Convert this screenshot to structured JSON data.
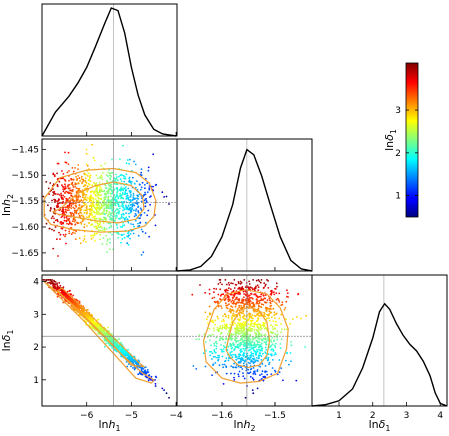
{
  "chart_data": {
    "type": "corner-plot",
    "parameters": [
      {
        "key": "lnh1",
        "label": "ln h1",
        "base": "ln",
        "symbol": "h",
        "sub": "1",
        "range": [
          -7.0,
          -3.98
        ],
        "ticks": [
          -6,
          -5,
          -4
        ],
        "tick_labels": [
          "−6",
          "−5",
          "−4"
        ],
        "marker": -5.4
      },
      {
        "key": "lnh2",
        "label": "ln h2",
        "base": "ln",
        "symbol": "h",
        "sub": "2",
        "range": [
          -1.685,
          -1.43
        ],
        "ticks": [
          -1.6,
          -1.5
        ],
        "tick_labels": [
          "−1.6",
          "−1.5"
        ],
        "ticks_y": [
          -1.65,
          -1.6,
          -1.55,
          -1.5,
          -1.45
        ],
        "tick_labels_y": [
          "−1.65",
          "−1.60",
          "−1.55",
          "−1.50",
          "−1.45"
        ],
        "marker": -1.553
      },
      {
        "key": "lndelta1",
        "label": "ln δ1",
        "base": "ln",
        "symbol": "δ",
        "sub": "1",
        "range": [
          0.2,
          4.2
        ],
        "ticks": [
          1,
          2,
          3,
          4
        ],
        "tick_labels": [
          "1",
          "2",
          "3",
          "4"
        ],
        "marker": 2.33
      }
    ],
    "marginals": [
      {
        "param": "lnh1",
        "type": "line",
        "x": [
          -7.0,
          -6.7,
          -6.4,
          -6.2,
          -6.0,
          -5.8,
          -5.6,
          -5.45,
          -5.3,
          -5.15,
          -5.0,
          -4.85,
          -4.7,
          -4.5,
          -4.3,
          -4.0
        ],
        "y": [
          0.0,
          0.18,
          0.3,
          0.4,
          0.52,
          0.68,
          0.85,
          0.97,
          0.95,
          0.78,
          0.52,
          0.31,
          0.16,
          0.05,
          0.015,
          0.0
        ]
      },
      {
        "param": "lnh2",
        "type": "line",
        "x": [
          -1.685,
          -1.66,
          -1.64,
          -1.62,
          -1.6,
          -1.58,
          -1.565,
          -1.553,
          -1.54,
          -1.525,
          -1.51,
          -1.49,
          -1.47,
          -1.45,
          -1.43
        ],
        "y": [
          0.0,
          0.008,
          0.035,
          0.11,
          0.26,
          0.5,
          0.78,
          0.92,
          0.88,
          0.72,
          0.52,
          0.26,
          0.08,
          0.015,
          0.0
        ]
      },
      {
        "param": "lndelta1",
        "type": "line",
        "x": [
          0.2,
          0.6,
          1.0,
          1.4,
          1.7,
          2.0,
          2.2,
          2.35,
          2.5,
          2.7,
          2.9,
          3.1,
          3.3,
          3.5,
          3.7,
          3.85,
          4.0,
          4.2
        ],
        "y": [
          0.0,
          0.01,
          0.04,
          0.13,
          0.29,
          0.52,
          0.72,
          0.78,
          0.74,
          0.63,
          0.54,
          0.47,
          0.42,
          0.34,
          0.23,
          0.1,
          0.02,
          0.0
        ]
      }
    ],
    "scatter_panels": [
      {
        "x": "lnh1",
        "y": "lnh2",
        "color_by": "lndelta1",
        "n_points": 1300,
        "correlation": {
          "lnh1_lndelta1": -0.98,
          "lnh2_lndelta1": -0.05
        },
        "contours": [
          {
            "level": "inner",
            "x": [
              -6.6,
              -6.2,
              -5.8,
              -5.4,
              -5.0,
              -4.75,
              -4.72,
              -4.9,
              -5.3,
              -5.8,
              -6.3,
              -6.65,
              -6.75,
              -6.6
            ],
            "y": [
              -1.565,
              -1.535,
              -1.52,
              -1.513,
              -1.52,
              -1.54,
              -1.565,
              -1.585,
              -1.592,
              -1.588,
              -1.58,
              -1.575,
              -1.57,
              -1.565
            ]
          },
          {
            "level": "outer",
            "x": [
              -6.95,
              -6.6,
              -6.0,
              -5.4,
              -4.9,
              -4.6,
              -4.45,
              -4.5,
              -4.7,
              -5.1,
              -5.7,
              -6.3,
              -6.8,
              -6.95,
              -6.95
            ],
            "y": [
              -1.545,
              -1.505,
              -1.49,
              -1.487,
              -1.495,
              -1.515,
              -1.55,
              -1.58,
              -1.598,
              -1.608,
              -1.61,
              -1.605,
              -1.595,
              -1.58,
              -1.545
            ]
          }
        ]
      },
      {
        "x": "lnh1",
        "y": "lndelta1",
        "color_by": "lndelta1",
        "n_points": 1300,
        "relation": {
          "slope": -1.34,
          "intercept": -5.1,
          "scatter_sd": 0.07
        },
        "contours": [
          {
            "level": "inner",
            "x": [
              -6.55,
              -5.9,
              -5.3,
              -4.85,
              -4.72,
              -5.0,
              -5.6,
              -6.2,
              -6.65,
              -6.55
            ],
            "y": [
              3.8,
              2.95,
              2.15,
              1.55,
              1.4,
              1.45,
              2.3,
              3.1,
              3.72,
              3.8
            ]
          },
          {
            "level": "outer",
            "x": [
              -6.95,
              -6.4,
              -5.8,
              -5.2,
              -4.75,
              -4.5,
              -4.55,
              -4.9,
              -5.5,
              -6.1,
              -6.7,
              -6.95
            ],
            "y": [
              4.0,
              3.4,
              2.6,
              1.75,
              1.2,
              1.0,
              0.9,
              1.05,
              1.95,
              2.85,
              3.65,
              4.0
            ]
          }
        ]
      },
      {
        "x": "lnh2",
        "y": "lndelta1",
        "color_by": "lndelta1",
        "n_points": 1300,
        "contours": [
          {
            "level": "inner",
            "x": [
              -1.59,
              -1.58,
              -1.565,
              -1.55,
              -1.53,
              -1.515,
              -1.51,
              -1.515,
              -1.53,
              -1.55,
              -1.57,
              -1.585,
              -1.592,
              -1.59
            ],
            "y": [
              2.1,
              2.75,
              3.12,
              3.22,
              3.12,
              2.75,
              2.2,
              1.75,
              1.45,
              1.38,
              1.45,
              1.7,
              1.9,
              2.1
            ]
          },
          {
            "level": "outer",
            "x": [
              -1.635,
              -1.615,
              -1.59,
              -1.555,
              -1.515,
              -1.49,
              -1.475,
              -1.478,
              -1.495,
              -1.53,
              -1.565,
              -1.6,
              -1.63,
              -1.635
            ],
            "y": [
              2.2,
              3.15,
              3.62,
              3.75,
              3.62,
              3.2,
              2.55,
              1.95,
              1.2,
              0.95,
              0.9,
              1.05,
              1.55,
              2.2
            ]
          }
        ]
      }
    ],
    "colorbar": {
      "label": "ln δ1",
      "base": "ln",
      "symbol": "δ",
      "sub": "1",
      "range": [
        0.5,
        4.1
      ],
      "ticks": [
        1,
        2,
        3
      ],
      "tick_labels": [
        "1",
        "2",
        "3"
      ],
      "colormap": "jet"
    },
    "colors": {
      "contour": "#f0a030",
      "marginal_line": "#000000",
      "marker_line": "#888888"
    },
    "grid": false
  }
}
